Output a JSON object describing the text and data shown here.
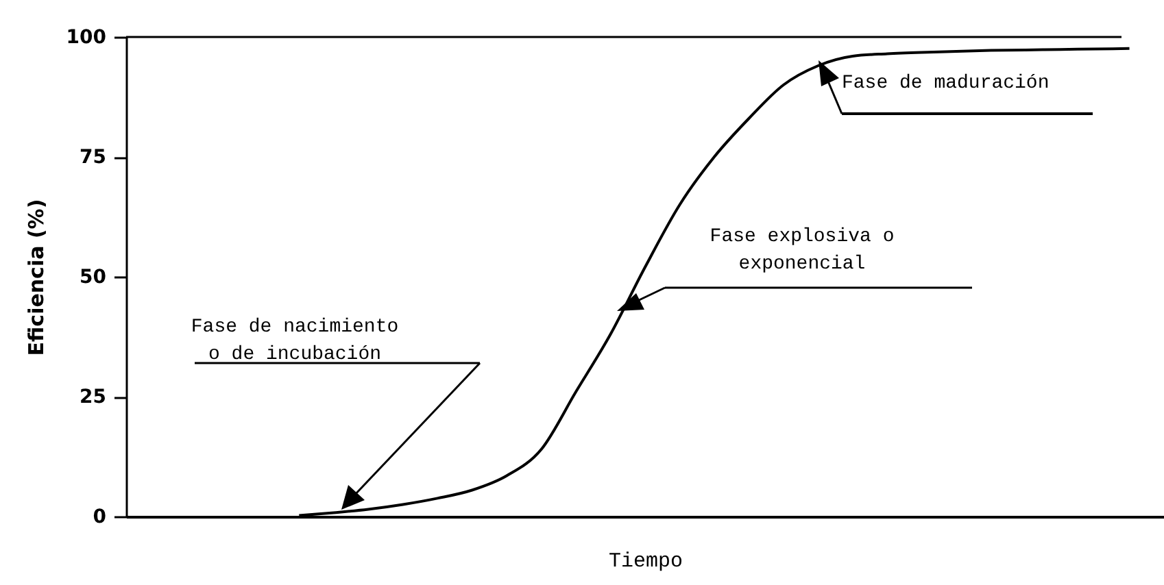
{
  "chart_data": {
    "type": "line",
    "xlabel": "Tiempo",
    "ylabel": "Eficiencia (%)",
    "categories": [
      null,
      null,
      null,
      null,
      null,
      null,
      null,
      null,
      null,
      null,
      null,
      null,
      null,
      null,
      null,
      null,
      null,
      null,
      null,
      null,
      null,
      null,
      null,
      null,
      null,
      null,
      null,
      null,
      null,
      null,
      null
    ],
    "series": [
      {
        "color": "#000000",
        "values": [
          null,
          null,
          null,
          null,
          null,
          0.2,
          0.8,
          1.5,
          2.5,
          3.8,
          5.5,
          8.5,
          14,
          26,
          38,
          52,
          65,
          75,
          83,
          90,
          94,
          96,
          96.5,
          96.8,
          97,
          97.2,
          97.3,
          97.4,
          97.5,
          97.6,
          null
        ]
      }
    ],
    "ylim": [
      0,
      100
    ],
    "yticks": [
      0,
      25,
      50,
      75,
      100
    ],
    "tick_labels": "y",
    "ref_lines": [
      {
        "axis": "y",
        "value": 100,
        "color": "#000000"
      }
    ],
    "annotations": [
      "Fase de nacimiento\n o de incubación",
      "Fase explosiva o\nexponencial",
      "Fase de maduración"
    ]
  }
}
